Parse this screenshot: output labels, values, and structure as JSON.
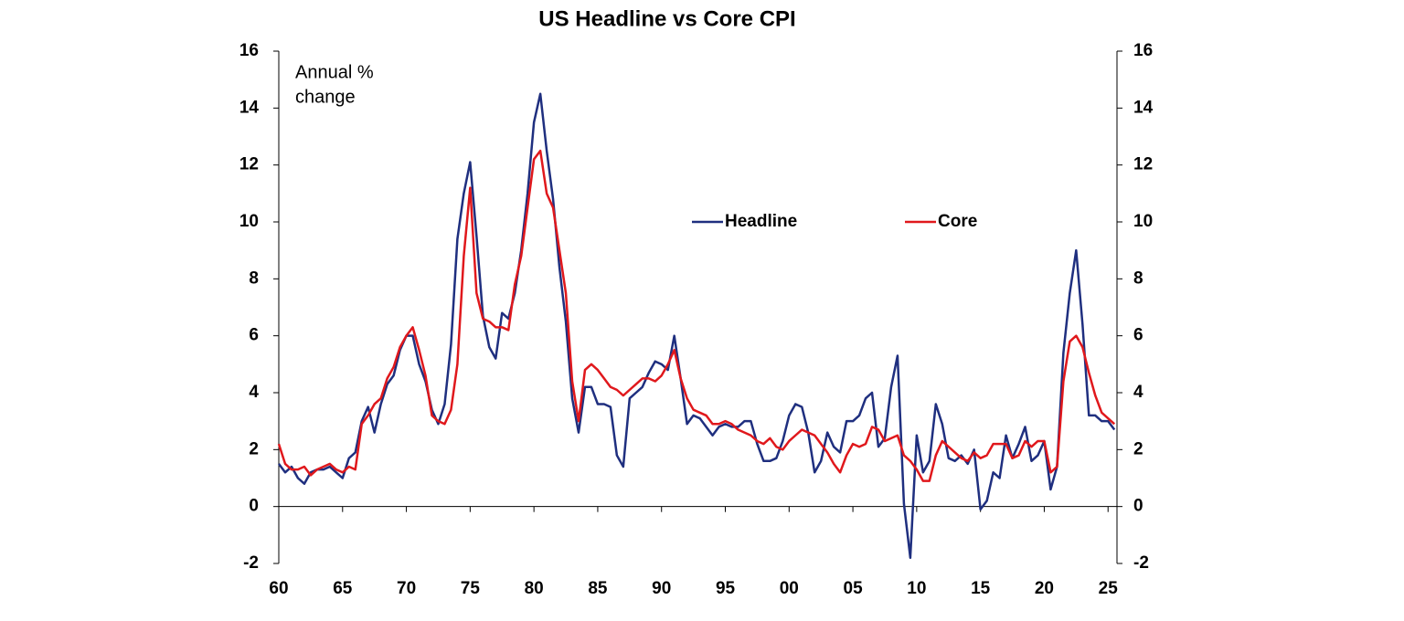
{
  "chart_data": {
    "type": "line",
    "title": "US Headline vs Core CPI",
    "annotation": [
      "Annual %",
      "change"
    ],
    "x": [
      1960,
      1960.5,
      1961,
      1961.5,
      1962,
      1962.5,
      1963,
      1963.5,
      1964,
      1964.5,
      1965,
      1965.5,
      1966,
      1966.5,
      1967,
      1967.5,
      1968,
      1968.5,
      1969,
      1969.5,
      1970,
      1970.5,
      1971,
      1971.5,
      1972,
      1972.5,
      1973,
      1973.5,
      1974,
      1974.5,
      1975,
      1975.5,
      1976,
      1976.5,
      1977,
      1977.5,
      1978,
      1978.5,
      1979,
      1979.5,
      1980,
      1980.5,
      1981,
      1981.5,
      1982,
      1982.5,
      1983,
      1983.5,
      1984,
      1984.5,
      1985,
      1985.5,
      1986,
      1986.5,
      1987,
      1987.5,
      1988,
      1988.5,
      1989,
      1989.5,
      1990,
      1990.5,
      1991,
      1991.5,
      1992,
      1992.5,
      1993,
      1993.5,
      1994,
      1994.5,
      1995,
      1995.5,
      1996,
      1996.5,
      1997,
      1997.5,
      1998,
      1998.5,
      1999,
      1999.5,
      2000,
      2000.5,
      2001,
      2001.5,
      2002,
      2002.5,
      2003,
      2003.5,
      2004,
      2004.5,
      2005,
      2005.5,
      2006,
      2006.5,
      2007,
      2007.5,
      2008,
      2008.5,
      2009,
      2009.5,
      2010,
      2010.5,
      2011,
      2011.5,
      2012,
      2012.5,
      2013,
      2013.5,
      2014,
      2014.5,
      2015,
      2015.5,
      2016,
      2016.5,
      2017,
      2017.5,
      2018,
      2018.5,
      2019,
      2019.5,
      2020,
      2020.5,
      2021,
      2021.5,
      2022,
      2022.5,
      2023,
      2023.5,
      2024,
      2024.5,
      2025,
      2025.5
    ],
    "series": [
      {
        "name": "Headline",
        "color": "#1f2f7f",
        "values": [
          1.5,
          1.2,
          1.4,
          1.0,
          0.8,
          1.2,
          1.3,
          1.3,
          1.4,
          1.2,
          1.0,
          1.7,
          1.9,
          3.0,
          3.5,
          2.6,
          3.6,
          4.3,
          4.6,
          5.5,
          6.0,
          6.0,
          5.0,
          4.4,
          3.4,
          2.9,
          3.6,
          5.7,
          9.4,
          11.0,
          12.1,
          9.5,
          6.7,
          5.6,
          5.2,
          6.8,
          6.6,
          7.5,
          9.0,
          11.0,
          13.5,
          14.5,
          12.5,
          10.8,
          8.4,
          6.5,
          3.8,
          2.6,
          4.2,
          4.2,
          3.6,
          3.6,
          3.5,
          1.8,
          1.4,
          3.8,
          4.0,
          4.2,
          4.7,
          5.1,
          5.0,
          4.8,
          6.0,
          4.5,
          2.9,
          3.2,
          3.1,
          2.8,
          2.5,
          2.8,
          2.9,
          2.8,
          2.8,
          3.0,
          3.0,
          2.2,
          1.6,
          1.6,
          1.7,
          2.3,
          3.2,
          3.6,
          3.5,
          2.6,
          1.2,
          1.6,
          2.6,
          2.1,
          1.9,
          3.0,
          3.0,
          3.2,
          3.8,
          4.0,
          2.1,
          2.4,
          4.2,
          5.3,
          0.1,
          -1.8,
          2.5,
          1.2,
          1.6,
          3.6,
          2.9,
          1.7,
          1.6,
          1.8,
          1.5,
          2.0,
          -0.1,
          0.2,
          1.2,
          1.0,
          2.5,
          1.7,
          2.2,
          2.8,
          1.6,
          1.8,
          2.3,
          0.6,
          1.4,
          5.4,
          7.5,
          9.0,
          6.4,
          3.2,
          3.2,
          3.0,
          3.0,
          2.7
        ]
      },
      {
        "name": "Core",
        "color": "#e0181c",
        "values": [
          2.2,
          1.5,
          1.3,
          1.3,
          1.4,
          1.1,
          1.3,
          1.4,
          1.5,
          1.3,
          1.2,
          1.4,
          1.3,
          2.9,
          3.2,
          3.6,
          3.8,
          4.5,
          4.9,
          5.6,
          6.0,
          6.3,
          5.5,
          4.6,
          3.2,
          3.0,
          2.9,
          3.4,
          5.0,
          8.8,
          11.2,
          7.5,
          6.6,
          6.5,
          6.3,
          6.3,
          6.2,
          7.8,
          8.8,
          10.5,
          12.2,
          12.5,
          11.0,
          10.5,
          9.0,
          7.5,
          4.4,
          3.0,
          4.8,
          5.0,
          4.8,
          4.5,
          4.2,
          4.1,
          3.9,
          4.1,
          4.3,
          4.5,
          4.5,
          4.4,
          4.6,
          5.0,
          5.5,
          4.5,
          3.8,
          3.4,
          3.3,
          3.2,
          2.9,
          2.9,
          3.0,
          2.9,
          2.7,
          2.6,
          2.5,
          2.3,
          2.2,
          2.4,
          2.1,
          2.0,
          2.3,
          2.5,
          2.7,
          2.6,
          2.5,
          2.2,
          1.9,
          1.5,
          1.2,
          1.8,
          2.2,
          2.1,
          2.2,
          2.8,
          2.7,
          2.3,
          2.4,
          2.5,
          1.8,
          1.6,
          1.3,
          0.9,
          0.9,
          1.8,
          2.3,
          2.1,
          1.9,
          1.7,
          1.6,
          1.9,
          1.7,
          1.8,
          2.2,
          2.2,
          2.2,
          1.7,
          1.8,
          2.3,
          2.1,
          2.3,
          2.3,
          1.2,
          1.4,
          4.4,
          5.8,
          6.0,
          5.6,
          4.7,
          3.9,
          3.3,
          3.1,
          2.9
        ]
      }
    ],
    "xlim": [
      1960,
      2025.7
    ],
    "xticks": [
      {
        "value": 1960,
        "label": "60"
      },
      {
        "value": 1965,
        "label": "65"
      },
      {
        "value": 1970,
        "label": "70"
      },
      {
        "value": 1975,
        "label": "75"
      },
      {
        "value": 1980,
        "label": "80"
      },
      {
        "value": 1985,
        "label": "85"
      },
      {
        "value": 1990,
        "label": "90"
      },
      {
        "value": 1995,
        "label": "95"
      },
      {
        "value": 2000,
        "label": "00"
      },
      {
        "value": 2005,
        "label": "05"
      },
      {
        "value": 2010,
        "label": "10"
      },
      {
        "value": 2015,
        "label": "15"
      },
      {
        "value": 2020,
        "label": "20"
      },
      {
        "value": 2025,
        "label": "25"
      }
    ],
    "ylim": [
      -2,
      16
    ],
    "yticks": [
      -2,
      0,
      2,
      4,
      6,
      8,
      10,
      12,
      14,
      16
    ],
    "y2lim": [
      -2,
      16
    ],
    "y2ticks": [
      -2,
      0,
      2,
      4,
      6,
      8,
      10,
      12,
      14,
      16
    ]
  }
}
